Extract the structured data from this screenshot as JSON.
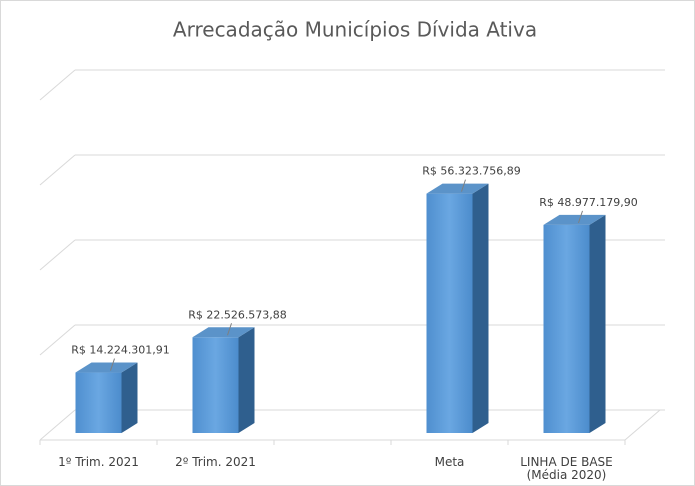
{
  "chart_data": {
    "type": "bar3d",
    "title": "Arrecadação Municípios Dívida Ativa",
    "categories": [
      "1º Trim. 2021",
      "2º Trim. 2021",
      null,
      "Meta",
      "LINHA DE  BASE (Média 2020)"
    ],
    "values": [
      14224301.91,
      22526573.88,
      null,
      56323756.89,
      48977179.9
    ],
    "value_labels": [
      "R$ 14.224.301,91",
      "R$ 22.526.573,88",
      null,
      "R$ 56.323.756,89",
      "R$ 48.977.179,90"
    ],
    "color": "#5b9bd5",
    "ylim": [
      0,
      80000000
    ],
    "yticks": [
      0,
      20000000,
      40000000,
      60000000,
      80000000
    ],
    "grid": true
  }
}
